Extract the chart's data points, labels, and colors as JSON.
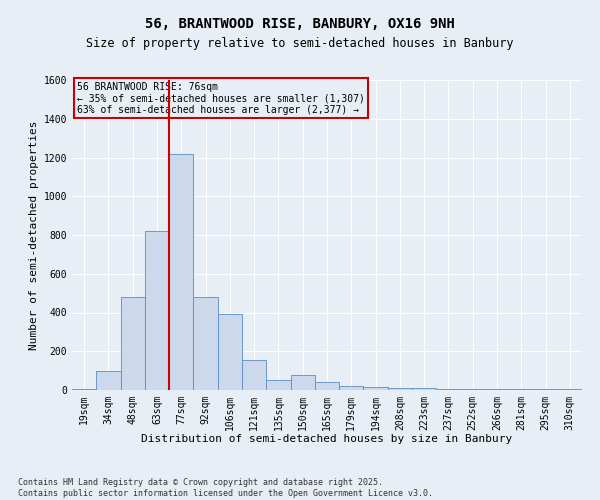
{
  "title_line1": "56, BRANTWOOD RISE, BANBURY, OX16 9NH",
  "title_line2": "Size of property relative to semi-detached houses in Banbury",
  "xlabel": "Distribution of semi-detached houses by size in Banbury",
  "ylabel": "Number of semi-detached properties",
  "categories": [
    "19sqm",
    "34sqm",
    "48sqm",
    "63sqm",
    "77sqm",
    "92sqm",
    "106sqm",
    "121sqm",
    "135sqm",
    "150sqm",
    "165sqm",
    "179sqm",
    "194sqm",
    "208sqm",
    "223sqm",
    "237sqm",
    "252sqm",
    "266sqm",
    "281sqm",
    "295sqm",
    "310sqm"
  ],
  "values": [
    5,
    100,
    480,
    820,
    1220,
    480,
    390,
    155,
    50,
    80,
    40,
    20,
    15,
    10,
    10,
    5,
    5,
    3,
    3,
    3,
    3
  ],
  "bar_color": "#ccd9ec",
  "bar_edge_color": "#5b8ec4",
  "vline_color": "#cc0000",
  "annotation_title": "56 BRANTWOOD RISE: 76sqm",
  "annotation_line2": "← 35% of semi-detached houses are smaller (1,307)",
  "annotation_line3": "63% of semi-detached houses are larger (2,377) →",
  "annotation_box_color": "#cc0000",
  "ylim": [
    0,
    1600
  ],
  "yticks": [
    0,
    200,
    400,
    600,
    800,
    1000,
    1200,
    1400,
    1600
  ],
  "footnote_line1": "Contains HM Land Registry data © Crown copyright and database right 2025.",
  "footnote_line2": "Contains public sector information licensed under the Open Government Licence v3.0.",
  "background_color": "#e8eef5",
  "grid_color": "#ffffff",
  "title_fontsize": 10,
  "subtitle_fontsize": 8.5,
  "axis_label_fontsize": 8,
  "tick_fontsize": 7,
  "footnote_fontsize": 6
}
